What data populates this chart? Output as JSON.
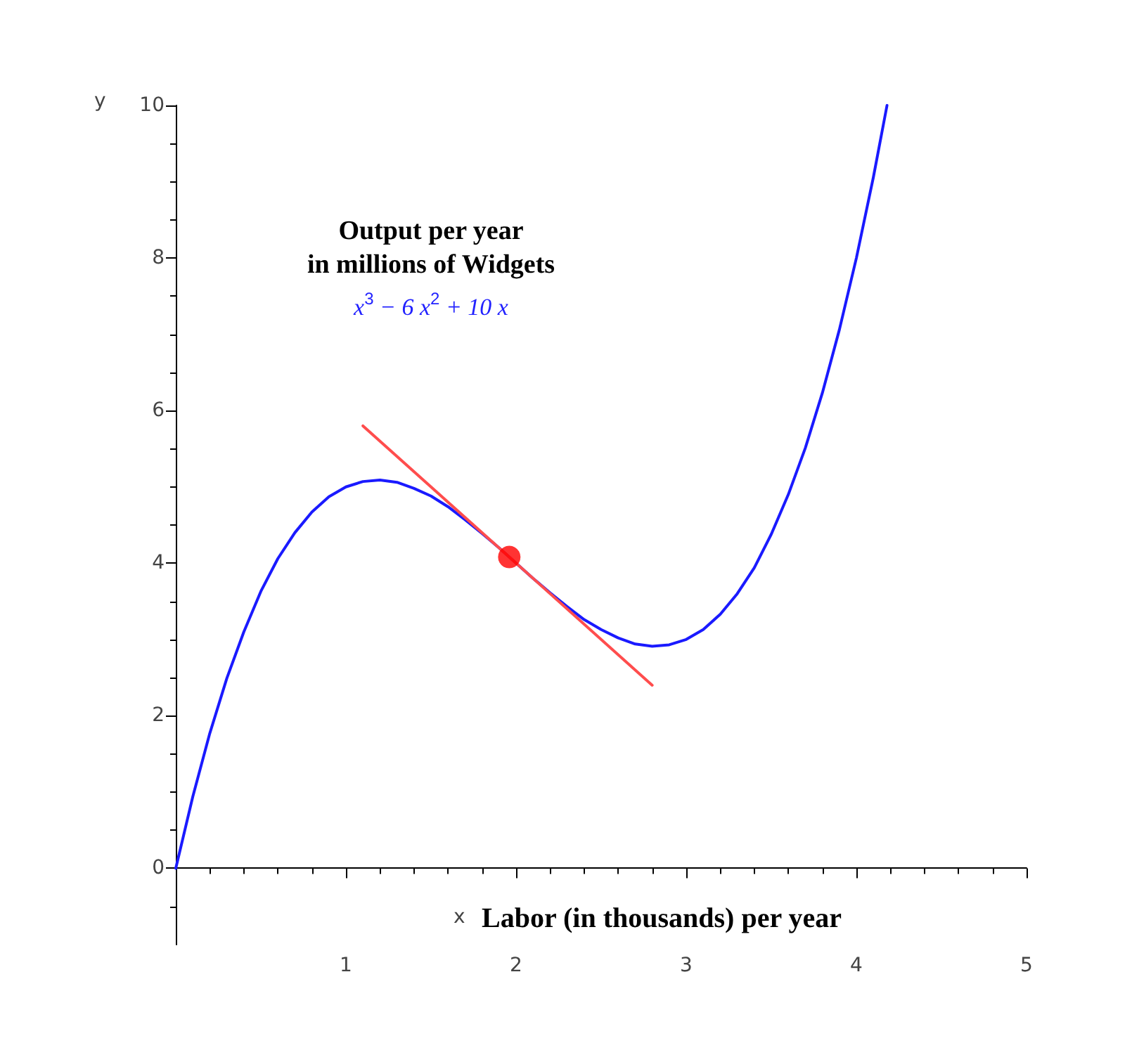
{
  "chart_data": {
    "type": "line",
    "xlabel": "x",
    "ylabel": "y",
    "annotations": [
      "Output per year\nin millions of Widgets",
      "x$^{3}$ − 6 x$^{2}$ + 10 x",
      "Labor (in thousands) per year"
    ],
    "xlim": [
      0,
      5
    ],
    "ylim": [
      -1,
      10
    ],
    "xticks": [
      {
        "value": 0,
        "label": null
      },
      1,
      2,
      3,
      4,
      5
    ],
    "yticks": [
      0,
      2,
      4,
      6,
      8,
      10
    ],
    "marker": "none",
    "line_style": "solid",
    "series": [
      {
        "color": "#1a1aff",
        "x": [
          0,
          0.1,
          0.2,
          0.3,
          0.4,
          0.5,
          0.6,
          0.7,
          0.8,
          0.9,
          1,
          1.1,
          1.2,
          1.3,
          1.4,
          1.5,
          1.6,
          1.7,
          1.8,
          1.9,
          2,
          2.1,
          2.2,
          2.3,
          2.4,
          2.5,
          2.6,
          2.7,
          2.8,
          2.9,
          3,
          3.1,
          3.2,
          3.3,
          3.4,
          3.5,
          3.6,
          3.7,
          3.8,
          3.9,
          4,
          4.1,
          4.18
        ],
        "values": [
          0,
          0.94,
          1.77,
          2.49,
          3.1,
          3.63,
          4.06,
          4.4,
          4.67,
          4.87,
          5,
          5.07,
          5.09,
          5.06,
          4.98,
          4.88,
          4.74,
          4.57,
          4.39,
          4.2,
          4,
          3.8,
          3.61,
          3.43,
          3.26,
          3.13,
          3.02,
          2.94,
          2.91,
          2.93,
          3,
          3.13,
          3.33,
          3.6,
          3.94,
          4.38,
          4.9,
          5.51,
          6.23,
          7.06,
          8,
          9.06,
          10
        ]
      },
      {
        "color": "#ff4d4d",
        "x": [
          1.1,
          2.8
        ],
        "values": [
          5.8,
          2.4
        ]
      },
      {
        "type": "scatter",
        "color": "#ff0000",
        "marker": "circle",
        "x": [
          1.96
        ],
        "values": [
          4.08
        ]
      }
    ]
  }
}
